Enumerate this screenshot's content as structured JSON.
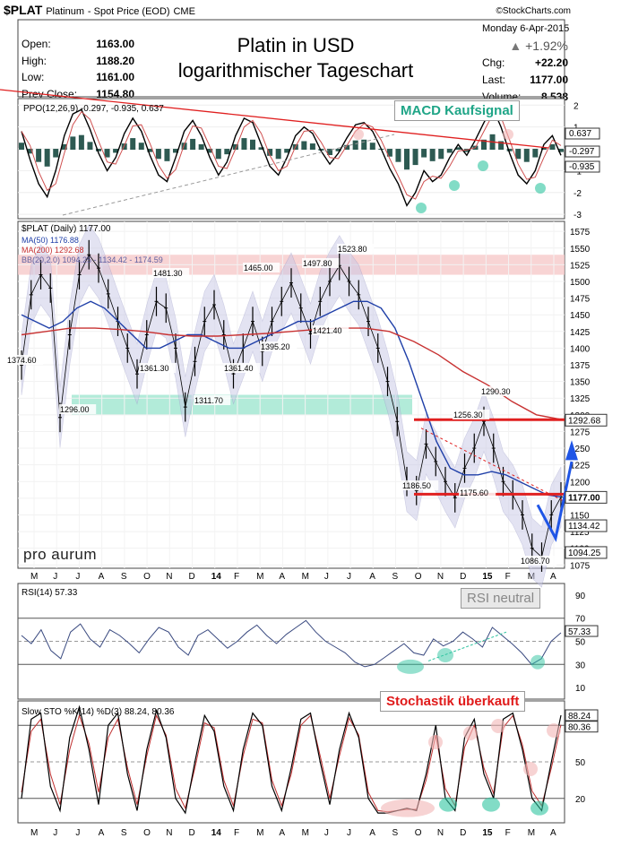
{
  "header": {
    "symbol": "$PLAT",
    "name": "Platinum",
    "series_desc": "- Spot Price (EOD)",
    "exchange": "CME",
    "source": "©StockCharts.com",
    "date": "Monday  6-Apr-2015",
    "pct_change": "+1.92%",
    "stats": [
      {
        "label": "Open:",
        "value": "1163.00"
      },
      {
        "label": "High:",
        "value": "1188.20"
      },
      {
        "label": "Low:",
        "value": "1161.00"
      },
      {
        "label": "Prev Close:",
        "value": "1154.80"
      }
    ],
    "stats_right": [
      {
        "label": "Chg:",
        "value": "+22.20"
      },
      {
        "label": "Last:",
        "value": "1177.00"
      },
      {
        "label": "Volume:",
        "value": "8,538"
      }
    ],
    "title_line1": "Platin in USD",
    "title_line2": "logarithmischer Tageschart"
  },
  "annotations": {
    "macd": "MACD Kaufsignal",
    "rsi": "RSI neutral",
    "sto": "Stochastik überkauft",
    "brand": "pro aurum"
  },
  "colors": {
    "accent_green": "#2ec4a0",
    "red_line": "#e02020",
    "ma50": "#1f3fa8",
    "ma200": "#c83232",
    "bb_fill": "#c8c8e6",
    "arrow_blue": "#1f55e6"
  },
  "chart_data": [
    {
      "type": "line",
      "panel": "PPO",
      "legend": "PPO(12,26,9) -0.297, -0.935, 0.637",
      "y_ticks": [
        "2",
        "1",
        "0",
        "-1",
        "-2",
        "-3"
      ],
      "ylim": [
        -3.2,
        2.3
      ],
      "right_labels": [
        "0.637",
        "-0.297",
        "-0.935"
      ],
      "series": [
        {
          "name": "PPO",
          "values": [
            0.8,
            -0.5,
            -1.6,
            -2.2,
            -1.0,
            0.6,
            1.6,
            1.8,
            0.9,
            -0.2,
            -1.0,
            -0.4,
            0.7,
            1.4,
            0.8,
            -0.3,
            -1.2,
            -1.5,
            -0.4,
            0.8,
            1.3,
            0.6,
            -0.4,
            -1.2,
            -0.6,
            0.6,
            1.4,
            1.2,
            0.2,
            -0.8,
            -1.2,
            -0.4,
            0.6,
            1.0,
            0.7,
            -0.1,
            -0.7,
            -0.2,
            0.5,
            1.1,
            1.2,
            0.8,
            0.0,
            -0.9,
            -1.6,
            -2.6,
            -2.0,
            -1.0,
            -1.5,
            -1.2,
            -0.4,
            0.2,
            -0.3,
            0.4,
            1.2,
            1.9,
            1.0,
            -0.2,
            -1.2,
            -1.6,
            -1.0,
            0.2,
            0.6,
            -0.3
          ]
        }
      ]
    },
    {
      "type": "line",
      "panel": "Price",
      "legend": "$PLAT (Daily) 1177.00",
      "ma_legends": [
        "MA(50) 1176.88",
        "MA(200) 1292.68",
        "BB(20,2.0) 1094.25 - 1134.42 - 1174.59"
      ],
      "y_ticks": [
        "1575",
        "1550",
        "1525",
        "1500",
        "1475",
        "1450",
        "1425",
        "1400",
        "1375",
        "1350",
        "1325",
        "1300",
        "1275",
        "1250",
        "1225",
        "1200",
        "1175",
        "1150",
        "1125",
        "1100",
        "1075"
      ],
      "ylim": [
        1070,
        1590
      ],
      "x_labels": [
        "M",
        "J",
        "J",
        "A",
        "S",
        "O",
        "N",
        "D",
        "14",
        "F",
        "M",
        "A",
        "M",
        "J",
        "J",
        "A",
        "S",
        "O",
        "N",
        "D",
        "15",
        "F",
        "M",
        "A"
      ],
      "price_labels": [
        "1374.60",
        "1296.00",
        "1481.30",
        "1361.30",
        "1311.70",
        "1465.00",
        "1361.40",
        "1395.20",
        "1497.80",
        "1421.40",
        "1523.80",
        "1290.30",
        "1256.30",
        "1186.50",
        "1175.60",
        "1086.70"
      ],
      "right_labels": [
        "1292.68",
        "1177.00",
        "1134.42",
        "1094.25"
      ],
      "series": [
        {
          "name": "$PLAT",
          "values": [
            1374.6,
            1480,
            1510,
            1490,
            1296,
            1420,
            1510,
            1540,
            1520,
            1481.3,
            1440,
            1400,
            1361.3,
            1420,
            1470,
            1460,
            1400,
            1311.7,
            1380,
            1440,
            1465,
            1420,
            1361.4,
            1400,
            1440,
            1395.2,
            1440,
            1470,
            1497.8,
            1460,
            1421.4,
            1470,
            1500,
            1523.8,
            1500,
            1480,
            1440,
            1400,
            1350,
            1290,
            1200,
            1186.5,
            1256.3,
            1230,
            1200,
            1175.6,
            1220,
            1250,
            1290.3,
            1250,
            1200,
            1180,
            1150,
            1100,
            1086.7,
            1150,
            1177
          ]
        },
        {
          "name": "MA(50)",
          "values": [
            1450,
            1440,
            1430,
            1440,
            1460,
            1470,
            1460,
            1440,
            1420,
            1400,
            1400,
            1410,
            1420,
            1420,
            1410,
            1400,
            1400,
            1410,
            1420,
            1430,
            1440,
            1440,
            1450,
            1460,
            1470,
            1470,
            1460,
            1430,
            1380,
            1320,
            1260,
            1220,
            1210,
            1210,
            1215,
            1210,
            1200,
            1190,
            1180,
            1177
          ]
        },
        {
          "name": "MA(200)",
          "values": [
            1420,
            1425,
            1430,
            1430,
            1428,
            1425,
            1420,
            1418,
            1418,
            1420,
            1422,
            1425,
            1428,
            1430,
            1430,
            1425,
            1410,
            1390,
            1365,
            1345,
            1320,
            1300,
            1293
          ]
        }
      ],
      "resistance_levels": [
        1525,
        1296,
        1292.68,
        1177
      ],
      "arrows": [
        "down",
        "up"
      ]
    },
    {
      "type": "line",
      "panel": "RSI",
      "legend": "RSI(14) 57.33",
      "y_ticks": [
        "90",
        "70",
        "50",
        "30",
        "10"
      ],
      "ylim": [
        0,
        100
      ],
      "right_labels": [
        "57.33"
      ],
      "series": [
        {
          "name": "RSI(14)",
          "values": [
            55,
            48,
            60,
            42,
            35,
            58,
            65,
            52,
            45,
            60,
            55,
            48,
            40,
            52,
            62,
            58,
            45,
            38,
            55,
            60,
            52,
            44,
            50,
            58,
            64,
            55,
            48,
            56,
            62,
            68,
            58,
            50,
            45,
            40,
            32,
            28,
            30,
            36,
            42,
            48,
            40,
            38,
            52,
            46,
            50,
            58,
            52,
            45,
            62,
            55,
            48,
            40,
            30,
            35,
            50,
            57.33
          ]
        }
      ]
    },
    {
      "type": "line",
      "panel": "Slow STO",
      "legend": "Slow STO %K(14) %D(3) 88.24, 80.36",
      "y_ticks": [
        "80",
        "50",
        "20"
      ],
      "ylim": [
        0,
        100
      ],
      "right_labels": [
        "88.24",
        "80.36"
      ],
      "series": [
        {
          "name": "%K",
          "values": [
            20,
            85,
            90,
            30,
            10,
            70,
            95,
            60,
            15,
            80,
            90,
            40,
            10,
            60,
            92,
            70,
            20,
            8,
            50,
            88,
            75,
            30,
            10,
            60,
            90,
            80,
            30,
            10,
            45,
            85,
            90,
            50,
            15,
            60,
            90,
            70,
            20,
            8,
            8,
            10,
            12,
            10,
            40,
            80,
            20,
            10,
            70,
            85,
            40,
            20,
            85,
            90,
            60,
            20,
            10,
            50,
            88.24
          ]
        },
        {
          "name": "%D",
          "values": [
            25,
            75,
            85,
            40,
            15,
            60,
            88,
            65,
            25,
            70,
            85,
            45,
            15,
            55,
            88,
            72,
            28,
            12,
            45,
            82,
            78,
            35,
            14,
            55,
            85,
            82,
            35,
            14,
            40,
            80,
            88,
            55,
            20,
            55,
            86,
            72,
            25,
            10,
            9,
            10,
            11,
            11,
            35,
            72,
            28,
            14,
            62,
            80,
            45,
            24,
            78,
            88,
            64,
            26,
            14,
            45,
            80.36
          ]
        }
      ]
    }
  ]
}
